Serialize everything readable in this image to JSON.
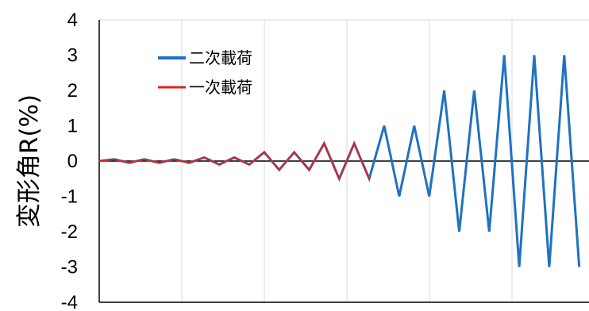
{
  "chart_data": {
    "type": "line",
    "xlabel": "",
    "ylabel": "変形角R(%)",
    "ylim": [
      -4,
      4
    ],
    "yticks": [
      "4",
      "3",
      "2",
      "1",
      "0",
      "-1",
      "-2",
      "-3",
      "-4"
    ],
    "xlim": [
      0,
      32
    ],
    "grid": "vertical",
    "legend_position": "top-left",
    "series": [
      {
        "name": "二次載荷",
        "color": "#1f72c0",
        "x": [
          0,
          1,
          2,
          3,
          4,
          5,
          6,
          7,
          8,
          9,
          10,
          11,
          12,
          13,
          14,
          15,
          16,
          17,
          18,
          19,
          20,
          21,
          22,
          23,
          24,
          25,
          26,
          27,
          28,
          29,
          30,
          31,
          32
        ],
        "values": [
          0,
          0.05,
          -0.05,
          0.05,
          -0.05,
          0.05,
          -0.05,
          0.1,
          -0.1,
          0.1,
          -0.1,
          0.25,
          -0.25,
          0.25,
          -0.25,
          0.5,
          -0.5,
          0.5,
          -0.5,
          1,
          -1,
          1,
          -1,
          2,
          -2,
          2,
          -2,
          3,
          -3,
          3,
          -3,
          3,
          -3
        ]
      },
      {
        "name": "一次載荷",
        "color": "#e02020",
        "x": [
          0,
          1,
          2,
          3,
          4,
          5,
          6,
          7,
          8,
          9,
          10,
          11,
          12,
          13,
          14,
          15,
          16,
          17,
          18
        ],
        "values": [
          0,
          0.05,
          -0.05,
          0.05,
          -0.05,
          0.05,
          -0.05,
          0.1,
          -0.1,
          0.1,
          -0.1,
          0.25,
          -0.25,
          0.25,
          -0.25,
          0.5,
          -0.5,
          0.5,
          -0.5
        ]
      }
    ]
  }
}
